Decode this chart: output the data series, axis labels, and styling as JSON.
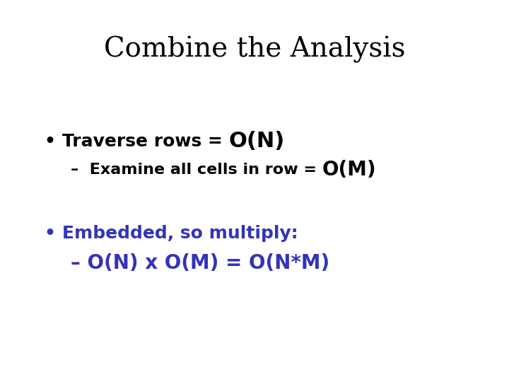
{
  "title": "Combine the Analysis",
  "title_fontsize": 28,
  "title_color": "#000000",
  "background_color": "#ffffff",
  "bullet1_normal": "Traverse rows = ",
  "bullet1_big": "O(N)",
  "bullet1_fontsize": 18,
  "bullet1_big_fontsize": 22,
  "bullet1_color": "#000000",
  "sub1_normal": "–  Examine all cells in row = ",
  "sub1_big": "O(M)",
  "sub1_fontsize": 16,
  "sub1_big_fontsize": 20,
  "sub1_color": "#000000",
  "bullet2_text": "Embedded, so multiply:",
  "bullet2_fontsize": 18,
  "bullet2_color": "#3333bb",
  "sub2_text": "– O(N) x O(M) = O(N*M)",
  "sub2_fontsize": 20,
  "sub2_color": "#3333bb",
  "fig_w": 720,
  "fig_h": 540
}
